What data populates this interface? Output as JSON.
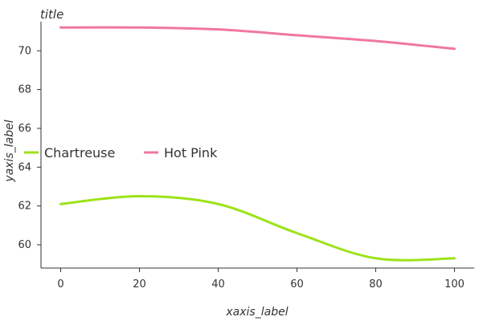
{
  "chart_data": {
    "type": "line",
    "title": "title",
    "xlabel": "xaxis_label",
    "ylabel": "yaxis_label",
    "x": [
      0,
      20,
      40,
      60,
      80,
      100
    ],
    "x_ticks": [
      0,
      20,
      40,
      60,
      80,
      100
    ],
    "y_ticks": [
      60,
      62,
      64,
      66,
      68,
      70
    ],
    "xlim": [
      -5,
      105
    ],
    "ylim": [
      58.8,
      71.5
    ],
    "grid": false,
    "legend_position": "lower-center",
    "series": [
      {
        "name": "Chartreuse",
        "color": "#9de21a",
        "values": [
          62.1,
          62.5,
          62.1,
          60.6,
          59.3,
          59.3
        ]
      },
      {
        "name": "Hot Pink",
        "color": "#f0789e",
        "values": [
          71.2,
          71.2,
          71.1,
          70.8,
          70.5,
          70.1
        ]
      }
    ]
  }
}
